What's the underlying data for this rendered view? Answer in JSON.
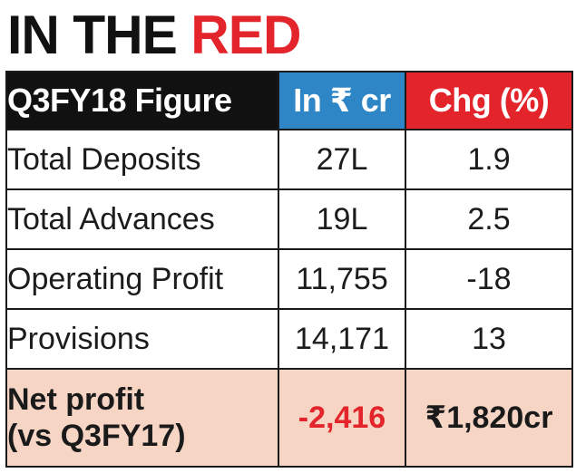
{
  "headline": {
    "part1": "IN THE ",
    "part2": "RED",
    "colors": {
      "part1": "#111111",
      "part2": "#e3252b"
    }
  },
  "chart_data": {
    "type": "table",
    "title": "IN THE RED",
    "columns": [
      "Q3FY18 Figure",
      "In ₹ cr",
      "Chg (%)"
    ],
    "header_colors": [
      "#111111",
      "#2f86c6",
      "#e3252b"
    ],
    "rows": [
      {
        "label": "Total Deposits",
        "value": "27L",
        "change": "1.9"
      },
      {
        "label": "Total Advances",
        "value": "19L",
        "change": "2.5"
      },
      {
        "label": "Operating Profit",
        "value": "11,755",
        "change": "-18"
      },
      {
        "label": "Provisions",
        "value": "14,171",
        "change": "13"
      }
    ],
    "total": {
      "label_line1": "Net profit",
      "label_line2": "(vs Q3FY17)",
      "value": "-2,416",
      "change": "₹1,820cr",
      "background": "#f6d5c4"
    },
    "negative_color": "#e3252b"
  }
}
